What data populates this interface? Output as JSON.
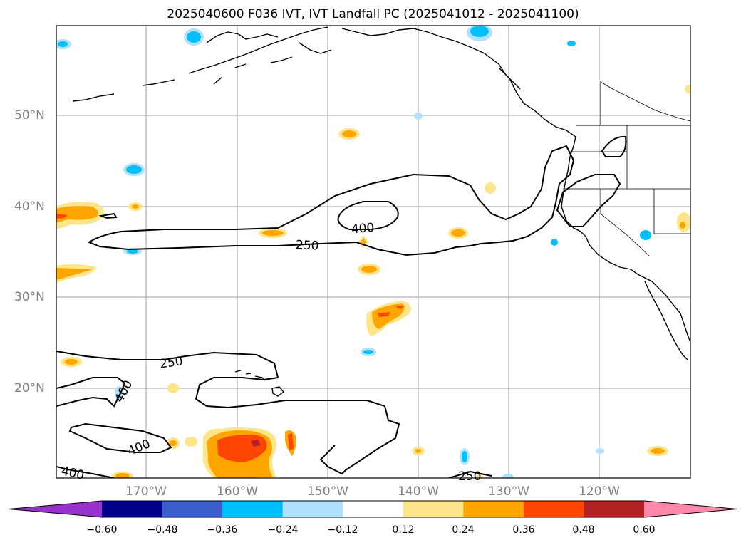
{
  "title": "2025040600 F036 IVT, IVT Landfall PC (2025041012 - 2025041100)",
  "lat_labels": [
    "50°N",
    "40°N",
    "30°N",
    "20°N"
  ],
  "lon_labels": [
    "170°W",
    "160°W",
    "150°W",
    "140°W",
    "130°W",
    "120°W"
  ],
  "contour_labels": [
    "400",
    "250",
    "250",
    "400",
    "400",
    "400",
    "250"
  ],
  "colorbar": {
    "ticks": [
      "−0.60",
      "−0.48",
      "−0.36",
      "−0.24",
      "−0.12",
      "0.12",
      "0.24",
      "0.36",
      "0.48",
      "0.60"
    ],
    "colors": [
      "#9932cc",
      "#00008b",
      "#3a5fcd",
      "#00bfff",
      "#b0e2ff",
      "#ffffff",
      "#ffe58a",
      "#ffa500",
      "#ff4500",
      "#b22222",
      "#ff88aa"
    ]
  },
  "colors": {
    "contour": "#000000",
    "grid": "#a0a0a0",
    "coast": "#000000"
  }
}
